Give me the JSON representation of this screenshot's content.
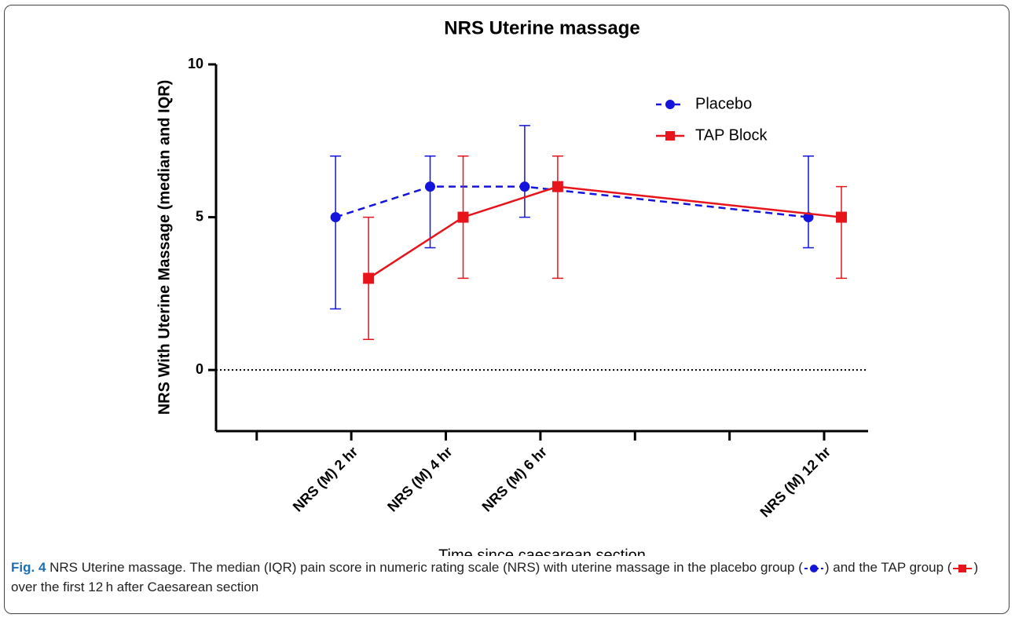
{
  "chart_data": {
    "type": "line",
    "title": "NRS Uterine massage",
    "ylabel": "NRS With Uterine Massage (median and IQR)",
    "xlabel": "Time since caesarean section",
    "x": [
      2,
      4,
      6,
      12
    ],
    "xlim": [
      -0.86,
      12.93
    ],
    "xticks": [
      0,
      {
        "value": 2,
        "label": "NRS (M) 2 hr"
      },
      {
        "value": 4,
        "label": "NRS (M) 4 hr"
      },
      {
        "value": 6,
        "label": "NRS (M) 6 hr"
      },
      8,
      10,
      {
        "value": 12,
        "label": "NRS (M) 12 hr"
      }
    ],
    "ylim": [
      -2,
      10
    ],
    "yticks": [
      0,
      5,
      10
    ],
    "hline": 0,
    "legend": "upper right",
    "series": [
      {
        "name": "Placebo",
        "color": "#1414dc",
        "dashed": true,
        "marker": "circle",
        "values": [
          5,
          6,
          6,
          5
        ],
        "lower": [
          2,
          4,
          5,
          4
        ],
        "upper": [
          7,
          7,
          8,
          7
        ]
      },
      {
        "name": "TAP Block",
        "color": "#e8141c",
        "dashed": false,
        "marker": "square",
        "values": [
          3,
          5,
          6,
          5
        ],
        "lower": [
          1,
          3,
          3,
          3
        ],
        "upper": [
          5,
          7,
          7,
          6
        ]
      }
    ]
  },
  "caption": {
    "label": "Fig. 4",
    "parts": [
      " NRS Uterine massage. The median (IQR) pain score in numeric rating scale (NRS) with uterine massage in the placebo group (",
      ") and the TAP group (",
      ") over the first 12 h after Caesarean section"
    ]
  }
}
